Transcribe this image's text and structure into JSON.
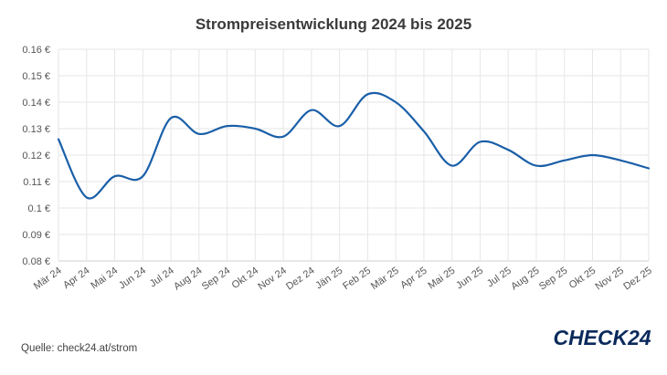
{
  "chart_data": {
    "type": "line",
    "title": "Strompreisentwicklung 2024 bis 2025",
    "xlabel": "",
    "ylabel": "",
    "categories": [
      "Mär 24",
      "Apr 24",
      "Mai 24",
      "Jun 24",
      "Jul 24",
      "Aug 24",
      "Sep 24",
      "Okt 24",
      "Nov 24",
      "Dez 24",
      "Jän 25",
      "Feb 25",
      "Mär 25",
      "Apr 25",
      "Mai 25",
      "Jun 25",
      "Jul 25",
      "Aug 25",
      "Sep 25",
      "Okt 25",
      "Nov 25",
      "Dez 25"
    ],
    "series": [
      {
        "values": [
          0.126,
          0.104,
          0.112,
          0.112,
          0.134,
          0.128,
          0.131,
          0.13,
          0.127,
          0.137,
          0.131,
          0.143,
          0.14,
          0.129,
          0.116,
          0.125,
          0.122,
          0.116,
          0.118,
          0.12,
          0.118,
          0.115
        ]
      }
    ],
    "ylim": [
      0.08,
      0.16
    ],
    "yticks": [
      0.08,
      0.09,
      0.1,
      0.11,
      0.12,
      0.13,
      0.14,
      0.15,
      0.16
    ],
    "ytick_labels": [
      "0.08 €",
      "0.09 €",
      "0.1 €",
      "0.11 €",
      "0.12 €",
      "0.13 €",
      "0.14 €",
      "0.15 €",
      "0.16 €"
    ],
    "grid": true,
    "line_color": "#1a5fa8"
  },
  "footer": {
    "source": "Quelle: check24.at/strom",
    "logo_text": "CHECK24",
    "logo_color": "#0b2a5c"
  }
}
